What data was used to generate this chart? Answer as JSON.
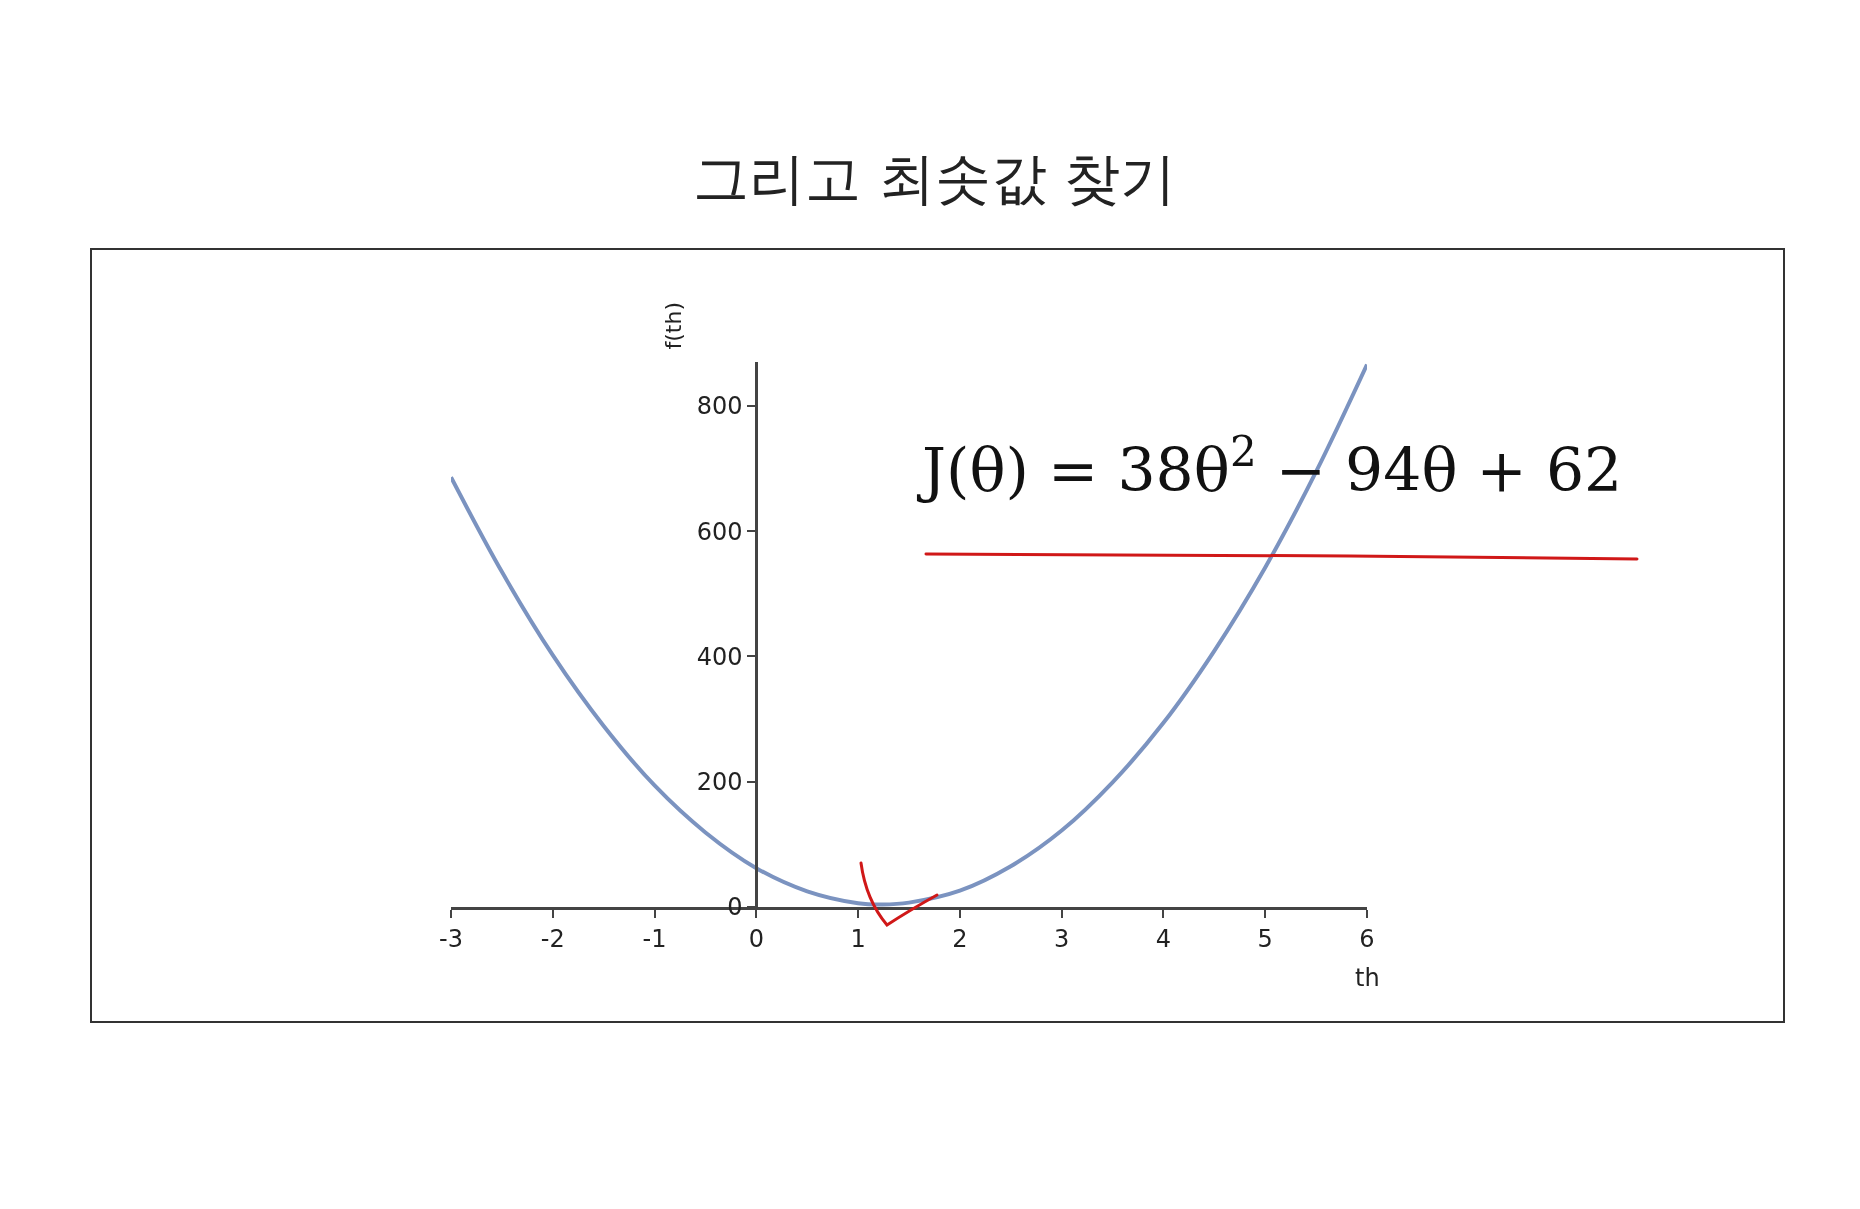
{
  "chart_data": {
    "type": "line",
    "title": "그리고 최솟값 찾기",
    "xlabel": "th",
    "ylabel": "f(th)",
    "annotations": [
      "J(θ) = 38θ$^{2}$ − 94θ + 62"
    ],
    "x": [
      -3,
      -2.5,
      -2,
      -1.5,
      -1,
      -0.5,
      0,
      0.5,
      1,
      1.24,
      1.5,
      2,
      2.5,
      3,
      3.5,
      4,
      4.5,
      5,
      5.5,
      6
    ],
    "series": [
      {
        "color": "#7b93c0",
        "values": [
          686,
          535,
          402,
          289,
          194,
          119,
          62,
          25,
          6,
          4,
          7,
          26,
          65,
          122,
          199,
          294,
          409,
          542,
          695,
          866
        ]
      }
    ],
    "xlim": [
      -3,
      6
    ],
    "xticks": [
      -3,
      -2,
      -1,
      0,
      1,
      2,
      3,
      4,
      5,
      6
    ],
    "ylim": [
      0,
      870
    ],
    "yticks": [
      0,
      200,
      400,
      600,
      800
    ],
    "grid": false,
    "marker": "none",
    "line_style": "solid"
  }
}
